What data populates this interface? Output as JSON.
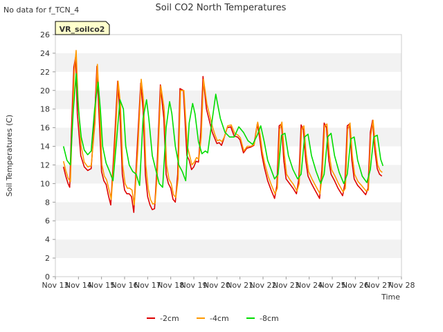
{
  "corner_note": "No data for f_TCN_4",
  "chart_data": {
    "type": "line",
    "title": "Soil CO2 North Temperatures",
    "xlabel": "Time",
    "ylabel": "Soil Temperatures (C)",
    "ylim": [
      0,
      26
    ],
    "yticks": [
      0,
      2,
      4,
      6,
      8,
      10,
      12,
      14,
      16,
      18,
      20,
      22,
      24,
      26
    ],
    "xlim": [
      13,
      28
    ],
    "xticks": [
      13,
      14,
      15,
      16,
      17,
      18,
      19,
      20,
      21,
      22,
      23,
      24,
      25,
      26,
      27,
      28
    ],
    "xtick_labels": [
      "Nov 13",
      "Nov 14",
      "Nov 15",
      "Nov 16",
      "Nov 17",
      "Nov 18",
      "Nov 19",
      "Nov 20",
      "Nov 21",
      "Nov 22",
      "Nov 23",
      "Nov 24",
      "Nov 25",
      "Nov 26",
      "Nov 27",
      "Nov 28"
    ],
    "grid": "horizontal alternating bands",
    "legend_placement": "bottom-center",
    "badge": "VR_soilco2",
    "series": [
      {
        "name": "-2cm",
        "color": "#dd0000",
        "x": [
          13.35,
          13.45,
          13.55,
          13.62,
          13.7,
          13.8,
          13.88,
          13.95,
          14.1,
          14.25,
          14.4,
          14.55,
          14.7,
          14.8,
          14.9,
          15.0,
          15.1,
          15.2,
          15.3,
          15.4,
          15.55,
          15.7,
          15.8,
          15.9,
          16.0,
          16.1,
          16.2,
          16.3,
          16.4,
          16.55,
          16.7,
          16.8,
          16.9,
          17.0,
          17.1,
          17.2,
          17.3,
          17.4,
          17.55,
          17.7,
          17.8,
          17.9,
          18.0,
          18.1,
          18.2,
          18.3,
          18.4,
          18.55,
          18.7,
          18.8,
          18.9,
          19.0,
          19.1,
          19.2,
          19.3,
          19.4,
          19.55,
          19.7,
          19.8,
          19.9,
          20.0,
          20.1,
          20.2,
          20.3,
          20.45,
          20.6,
          20.75,
          20.9,
          21.0,
          21.15,
          21.3,
          21.45,
          21.6,
          21.75,
          21.85,
          21.95,
          22.05,
          22.2,
          22.35,
          22.5,
          22.6,
          22.7,
          22.8,
          22.9,
          23.0,
          23.15,
          23.3,
          23.45,
          23.55,
          23.65,
          23.75,
          23.85,
          23.95,
          24.1,
          24.25,
          24.45,
          24.55,
          24.65,
          24.75,
          24.85,
          24.95,
          25.1,
          25.25,
          25.45,
          25.55,
          25.65,
          25.75,
          25.85,
          25.95,
          26.1,
          26.25,
          26.45,
          26.55,
          26.65,
          26.75,
          26.85,
          26.95,
          27.05,
          27.15
        ],
        "y": [
          11.8,
          10.8,
          10.0,
          9.6,
          16.0,
          22.5,
          23.6,
          17.5,
          13.0,
          11.8,
          11.4,
          11.6,
          17.0,
          22.6,
          17.0,
          11.3,
          10.3,
          9.9,
          8.7,
          7.7,
          14.0,
          21.0,
          17.5,
          11.0,
          9.3,
          8.9,
          8.9,
          8.6,
          6.9,
          14.0,
          20.8,
          18.0,
          11.0,
          8.6,
          7.7,
          7.2,
          7.3,
          11.5,
          20.6,
          17.0,
          11.0,
          10.0,
          9.5,
          8.3,
          8.0,
          11.0,
          20.2,
          20.0,
          13.0,
          12.5,
          11.5,
          11.8,
          12.4,
          12.3,
          15.5,
          21.5,
          18.0,
          16.5,
          15.5,
          14.9,
          14.3,
          14.4,
          14.1,
          14.8,
          16.0,
          16.1,
          15.1,
          15.0,
          14.7,
          13.3,
          13.8,
          13.9,
          14.1,
          16.4,
          15.0,
          13.1,
          11.8,
          10.3,
          9.3,
          8.4,
          9.8,
          16.2,
          16.4,
          12.5,
          10.5,
          10.0,
          9.5,
          8.9,
          10.5,
          16.3,
          15.8,
          12.5,
          10.8,
          10.0,
          9.3,
          8.4,
          11.5,
          16.5,
          16.0,
          12.5,
          11.0,
          10.3,
          9.5,
          8.7,
          10.0,
          16.2,
          16.4,
          12.5,
          10.5,
          9.8,
          9.4,
          8.8,
          9.5,
          15.5,
          16.8,
          13.5,
          11.6,
          11.0,
          10.8
        ]
      },
      {
        "name": "-4cm",
        "color": "#ff9900",
        "x": [
          13.35,
          13.45,
          13.55,
          13.65,
          13.72,
          13.82,
          13.9,
          13.98,
          14.12,
          14.25,
          14.4,
          14.55,
          14.72,
          14.82,
          14.92,
          15.02,
          15.12,
          15.22,
          15.32,
          15.42,
          15.57,
          15.72,
          15.82,
          15.92,
          16.02,
          16.12,
          16.22,
          16.32,
          16.42,
          16.57,
          16.72,
          16.82,
          16.92,
          17.02,
          17.12,
          17.22,
          17.32,
          17.42,
          17.57,
          17.72,
          17.82,
          17.92,
          18.02,
          18.12,
          18.22,
          18.32,
          18.42,
          18.57,
          18.72,
          18.82,
          18.92,
          19.02,
          19.12,
          19.22,
          19.32,
          19.42,
          19.57,
          19.72,
          19.82,
          19.92,
          20.02,
          20.12,
          20.22,
          20.32,
          20.47,
          20.62,
          20.77,
          20.92,
          21.02,
          21.17,
          21.32,
          21.47,
          21.62,
          21.77,
          21.87,
          21.97,
          22.07,
          22.22,
          22.37,
          22.52,
          22.62,
          22.72,
          22.82,
          22.92,
          23.02,
          23.17,
          23.32,
          23.47,
          23.57,
          23.67,
          23.77,
          23.87,
          23.97,
          24.12,
          24.27,
          24.47,
          24.57,
          24.67,
          24.77,
          24.87,
          24.97,
          25.12,
          25.27,
          25.47,
          25.57,
          25.67,
          25.77,
          25.87,
          25.97,
          26.12,
          26.27,
          26.47,
          26.57,
          26.67,
          26.77,
          26.87,
          26.97,
          27.07,
          27.17
        ],
        "y": [
          12.4,
          11.4,
          10.6,
          10.2,
          15.5,
          22.0,
          24.3,
          19.0,
          14.0,
          12.3,
          11.8,
          11.9,
          16.5,
          22.8,
          18.0,
          12.0,
          10.8,
          10.4,
          9.4,
          8.3,
          13.5,
          21.0,
          18.5,
          12.0,
          10.0,
          9.5,
          9.5,
          9.3,
          7.7,
          13.5,
          21.2,
          19.0,
          12.0,
          9.5,
          8.3,
          7.8,
          7.9,
          11.0,
          20.5,
          18.0,
          12.0,
          10.5,
          10.0,
          8.8,
          8.5,
          10.5,
          20.0,
          20.0,
          14.0,
          13.0,
          12.0,
          12.3,
          12.8,
          12.6,
          15.0,
          21.2,
          18.5,
          17.0,
          16.0,
          15.2,
          14.6,
          14.7,
          14.5,
          15.0,
          16.2,
          16.3,
          15.4,
          15.2,
          14.9,
          13.5,
          14.0,
          14.0,
          14.2,
          16.6,
          15.3,
          13.4,
          12.2,
          10.8,
          9.8,
          8.9,
          9.5,
          15.8,
          16.6,
          13.2,
          11.0,
          10.4,
          9.9,
          9.2,
          10.0,
          15.8,
          16.2,
          13.2,
          11.3,
          10.5,
          9.8,
          8.9,
          11.0,
          16.2,
          16.4,
          13.2,
          11.5,
          10.8,
          10.0,
          9.1,
          9.5,
          15.8,
          16.5,
          13.0,
          11.0,
          10.2,
          9.8,
          9.2,
          9.3,
          15.2,
          16.8,
          14.0,
          12.0,
          11.4,
          11.2
        ]
      },
      {
        "name": "-8cm",
        "color": "#00dd00",
        "x": [
          13.35,
          13.5,
          13.65,
          13.78,
          13.9,
          14.0,
          14.12,
          14.25,
          14.4,
          14.55,
          14.7,
          14.85,
          14.95,
          15.05,
          15.2,
          15.35,
          15.5,
          15.65,
          15.8,
          15.95,
          16.05,
          16.2,
          16.35,
          16.5,
          16.65,
          16.8,
          16.95,
          17.05,
          17.2,
          17.35,
          17.5,
          17.65,
          17.8,
          17.95,
          18.05,
          18.2,
          18.35,
          18.5,
          18.65,
          18.8,
          18.95,
          19.05,
          19.2,
          19.35,
          19.5,
          19.6,
          19.75,
          19.95,
          20.15,
          20.35,
          20.55,
          20.75,
          20.95,
          21.15,
          21.35,
          21.55,
          21.75,
          21.9,
          22.05,
          22.2,
          22.35,
          22.5,
          22.65,
          22.8,
          22.95,
          23.1,
          23.3,
          23.5,
          23.65,
          23.8,
          23.95,
          24.1,
          24.3,
          24.5,
          24.65,
          24.8,
          24.95,
          25.1,
          25.3,
          25.5,
          25.65,
          25.8,
          25.95,
          26.1,
          26.3,
          26.5,
          26.65,
          26.8,
          26.95,
          27.1,
          27.2
        ],
        "y": [
          14.0,
          12.5,
          12.0,
          18.0,
          21.8,
          18.0,
          15.0,
          13.6,
          13.1,
          13.5,
          18.0,
          20.9,
          18.0,
          14.0,
          12.2,
          11.3,
          10.3,
          14.5,
          19.0,
          18.0,
          14.0,
          12.0,
          11.3,
          11.0,
          9.8,
          17.0,
          19.0,
          17.0,
          13.0,
          11.5,
          10.0,
          9.6,
          16.0,
          18.8,
          17.5,
          14.0,
          12.0,
          11.3,
          10.3,
          16.5,
          18.6,
          17.5,
          14.5,
          13.2,
          13.5,
          13.3,
          16.0,
          19.6,
          17.0,
          15.5,
          15.0,
          15.0,
          16.1,
          15.5,
          14.6,
          14.2,
          15.2,
          16.2,
          14.5,
          12.5,
          11.5,
          10.5,
          11.0,
          15.2,
          15.4,
          13.0,
          11.5,
          10.5,
          11.0,
          15.0,
          15.3,
          13.0,
          11.3,
          10.0,
          11.0,
          15.0,
          15.4,
          13.0,
          11.2,
          10.0,
          11.0,
          14.8,
          15.0,
          12.5,
          10.8,
          10.1,
          11.5,
          15.0,
          15.2,
          12.6,
          11.9
        ]
      }
    ]
  }
}
